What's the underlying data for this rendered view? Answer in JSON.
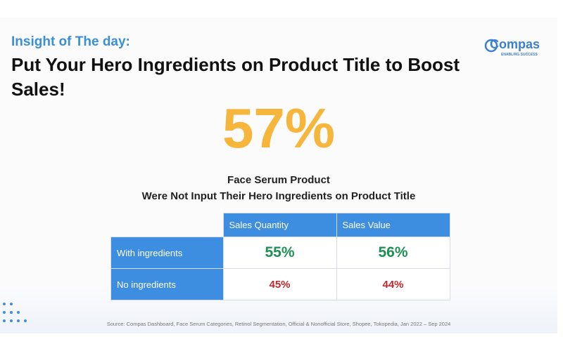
{
  "header": {
    "kicker": "Insight of The day:",
    "title": "Put Your Hero Ingredients on Product Title to Boost Sales!"
  },
  "logo": {
    "name": "Compas",
    "tagline": "ENABLING SUCCESS"
  },
  "highlight": {
    "value": "57%",
    "caption": [
      "Face Serum Product",
      "Were Not Input Their Hero Ingredients on Product Title"
    ]
  },
  "table": {
    "columns": [
      "Sales Quantity",
      "Sales Value"
    ],
    "rows": [
      {
        "label": "With ingredients",
        "cells": [
          "55%",
          "56%"
        ]
      },
      {
        "label": "No ingredients",
        "cells": [
          "45%",
          "44%"
        ]
      }
    ]
  },
  "footer": {
    "source": "Source: Compas Dashboard, Face Serum Categories, Retinol Segmentation, Official & Nonofficial Store, Shopee, Tokopedia,  Jan 2022 – Sep 2024"
  }
}
